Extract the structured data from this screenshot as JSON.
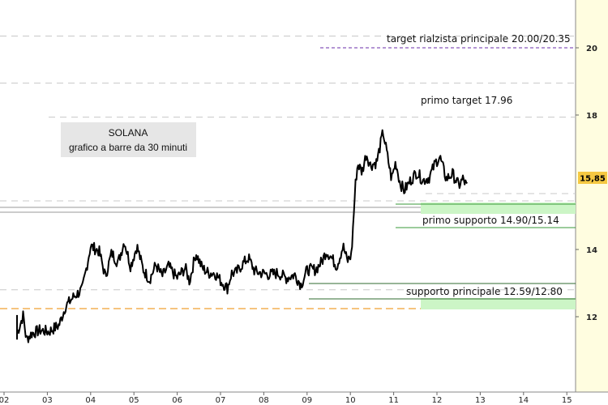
{
  "chart_data": {
    "type": "line",
    "title": "SOLANA",
    "subtitle": "grafico a barre da 30 minuti",
    "x_ticks": [
      "02",
      "03",
      "04",
      "05",
      "06",
      "07",
      "08",
      "09",
      "10",
      "11",
      "12",
      "13",
      "14",
      "15"
    ],
    "y_ticks": [
      "12",
      "14",
      "18",
      "20"
    ],
    "ylim": [
      11.25,
      21.0
    ],
    "current_price": {
      "label": "15,85",
      "value": 15.85
    },
    "price_path": [
      [
        0.0,
        11.5
      ],
      [
        0.15,
        12.05
      ],
      [
        0.22,
        11.32
      ],
      [
        0.35,
        11.5
      ],
      [
        0.55,
        11.6
      ],
      [
        0.75,
        11.55
      ],
      [
        1.0,
        11.75
      ],
      [
        1.15,
        12.3
      ],
      [
        1.35,
        12.6
      ],
      [
        1.55,
        12.8
      ],
      [
        1.75,
        14.1
      ],
      [
        1.95,
        13.95
      ],
      [
        2.1,
        13.2
      ],
      [
        2.25,
        13.9
      ],
      [
        2.4,
        13.6
      ],
      [
        2.55,
        14.25
      ],
      [
        2.7,
        13.5
      ],
      [
        2.85,
        14.1
      ],
      [
        3.0,
        13.4
      ],
      [
        3.15,
        13.1
      ],
      [
        3.3,
        13.55
      ],
      [
        3.45,
        13.2
      ],
      [
        3.6,
        13.5
      ],
      [
        3.8,
        13.15
      ],
      [
        4.0,
        13.45
      ],
      [
        4.1,
        13.05
      ],
      [
        4.25,
        13.9
      ],
      [
        4.4,
        13.45
      ],
      [
        4.55,
        13.3
      ],
      [
        4.7,
        13.3
      ],
      [
        4.85,
        13.05
      ],
      [
        5.0,
        12.85
      ],
      [
        5.1,
        13.3
      ],
      [
        5.2,
        13.3
      ],
      [
        5.35,
        13.55
      ],
      [
        5.5,
        13.75
      ],
      [
        5.65,
        13.35
      ],
      [
        5.8,
        13.3
      ],
      [
        6.0,
        13.25
      ],
      [
        6.2,
        13.3
      ],
      [
        6.4,
        13.15
      ],
      [
        6.6,
        13.25
      ],
      [
        6.75,
        12.95
      ],
      [
        6.9,
        13.4
      ],
      [
        7.1,
        13.4
      ],
      [
        7.25,
        13.65
      ],
      [
        7.35,
        13.95
      ],
      [
        7.45,
        13.8
      ],
      [
        7.6,
        13.5
      ],
      [
        7.75,
        14.1
      ],
      [
        7.85,
        13.65
      ],
      [
        7.95,
        13.85
      ],
      [
        8.0,
        15.0
      ],
      [
        8.05,
        16.05
      ],
      [
        8.1,
        16.55
      ],
      [
        8.2,
        16.3
      ],
      [
        8.3,
        16.85
      ],
      [
        8.4,
        16.5
      ],
      [
        8.55,
        16.6
      ],
      [
        8.7,
        17.5
      ],
      [
        8.8,
        16.8
      ],
      [
        8.9,
        16.1
      ],
      [
        9.0,
        16.6
      ],
      [
        9.1,
        16.0
      ],
      [
        9.2,
        15.75
      ],
      [
        9.35,
        16.05
      ],
      [
        9.5,
        16.3
      ],
      [
        9.65,
        16.05
      ],
      [
        9.8,
        16.15
      ],
      [
        9.95,
        16.6
      ],
      [
        10.05,
        16.75
      ],
      [
        10.2,
        16.1
      ],
      [
        10.35,
        16.25
      ],
      [
        10.5,
        15.9
      ],
      [
        10.6,
        16.1
      ],
      [
        10.7,
        15.85
      ]
    ],
    "levels": [
      {
        "label": "target rialzista principale 20.00/20.35",
        "values": [
          20.0,
          20.35
        ]
      },
      {
        "label": "primo target 17.96",
        "values": [
          17.96
        ]
      },
      {
        "label": "primo supporto 14.90/15.14",
        "values": [
          14.9,
          15.14
        ]
      },
      {
        "label": "supporto principale 12.59/12.80",
        "values": [
          12.59,
          12.8
        ]
      }
    ],
    "colors": {
      "price": "#000000",
      "support_band": "#ccf5c6",
      "support_line": "#3a9a3a",
      "target_line": "#6a2ea8",
      "orange_line": "#f0a030",
      "axis_bg": "#fffde0",
      "label_box": "#e6e6e6"
    },
    "grid": false
  }
}
